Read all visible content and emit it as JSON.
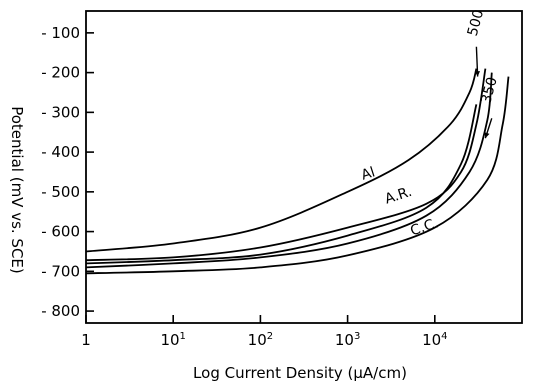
{
  "chart_data": {
    "type": "line",
    "xlabel": "Log Current Density (µA/cm)",
    "ylabel": "Potential (mV vs. SCE)",
    "xscale": "log",
    "xlim": [
      1,
      100000
    ],
    "ylim": [
      -830,
      -45
    ],
    "x_ticks": [
      {
        "value": 1,
        "base": "1",
        "exp": ""
      },
      {
        "value": 10,
        "base": "10",
        "exp": "1"
      },
      {
        "value": 100,
        "base": "10",
        "exp": "2"
      },
      {
        "value": 1000,
        "base": "10",
        "exp": "3"
      },
      {
        "value": 10000,
        "base": "10",
        "exp": "4"
      }
    ],
    "y_ticks": [
      -100,
      -200,
      -300,
      -400,
      -500,
      -600,
      -700,
      -800
    ],
    "grid": false,
    "legend": "none",
    "series": [
      {
        "name": "Al",
        "x": [
          1,
          10,
          100,
          1000,
          5000,
          15000,
          25000,
          30000
        ],
        "y": [
          -650,
          -630,
          -590,
          -500,
          -420,
          -330,
          -250,
          -190
        ]
      },
      {
        "name": "A.R.",
        "x": [
          1,
          10,
          100,
          1000,
          8000,
          20000,
          30000,
          38000
        ],
        "y": [
          -672,
          -665,
          -640,
          -590,
          -530,
          -450,
          -330,
          -190
        ]
      },
      {
        "name": "500",
        "x": [
          1,
          10,
          100,
          1000,
          8000,
          20000,
          30000
        ],
        "y": [
          -680,
          -672,
          -658,
          -610,
          -540,
          -430,
          -280
        ]
      },
      {
        "name": "350",
        "x": [
          1,
          10,
          100,
          1000,
          8000,
          25000,
          40000,
          45000
        ],
        "y": [
          -690,
          -680,
          -665,
          -630,
          -560,
          -450,
          -320,
          -200
        ]
      },
      {
        "name": "C.C.",
        "x": [
          1,
          10,
          100,
          1000,
          10000,
          40000,
          60000,
          70000
        ],
        "y": [
          -705,
          -700,
          -690,
          -660,
          -590,
          -470,
          -330,
          -210
        ]
      }
    ],
    "annotations": [
      {
        "text": "Al",
        "x": 1500,
        "y": -470
      },
      {
        "text": "A.R.",
        "x": 2800,
        "y": -530
      },
      {
        "text": "C.C.",
        "x": 5500,
        "y": -610
      },
      {
        "text": "500",
        "x": 30000,
        "y": -110
      },
      {
        "text": "350",
        "x": 43000,
        "y": -280
      }
    ]
  }
}
